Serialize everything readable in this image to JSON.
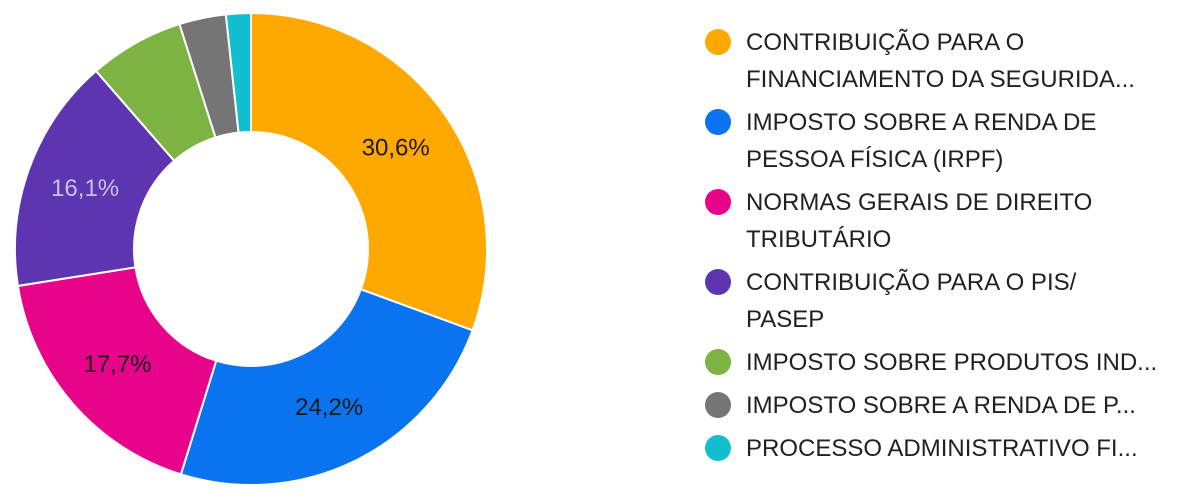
{
  "chart_data": {
    "type": "pie",
    "donut": true,
    "slices": [
      {
        "label": "CONTRIBUIÇÃO PARA O\nFINANCIAMENTO DA SEGURIDA...",
        "value": 30.6,
        "display": "30,6%",
        "color": "#ffa800",
        "label_color": "#1a1a1a"
      },
      {
        "label": "IMPOSTO SOBRE A RENDA DE\nPESSOA FÍSICA (IRPF)",
        "value": 24.2,
        "display": "24,2%",
        "color": "#0a73f0",
        "label_color": "#1a1a1a"
      },
      {
        "label": "NORMAS GERAIS DE DIREITO\nTRIBUTÁRIO",
        "value": 17.7,
        "display": "17,7%",
        "color": "#e8038b",
        "label_color": "#1a1a1a"
      },
      {
        "label": "CONTRIBUIÇÃO PARA O PIS/\nPASEP",
        "value": 16.1,
        "display": "16,1%",
        "color": "#5e35b1",
        "label_color": "#c9c2e0"
      },
      {
        "label": "IMPOSTO SOBRE PRODUTOS IND...",
        "value": 6.5,
        "display": "",
        "color": "#7cb342",
        "label_color": "#1a1a1a"
      },
      {
        "label": "IMPOSTO SOBRE A RENDA DE P...",
        "value": 3.2,
        "display": "",
        "color": "#757575",
        "label_color": "#1a1a1a"
      },
      {
        "label": "PROCESSO ADMINISTRATIVO FI...",
        "value": 1.7,
        "display": "",
        "color": "#12bfd1",
        "label_color": "#1a1a1a"
      }
    ],
    "legend_position": "right"
  }
}
